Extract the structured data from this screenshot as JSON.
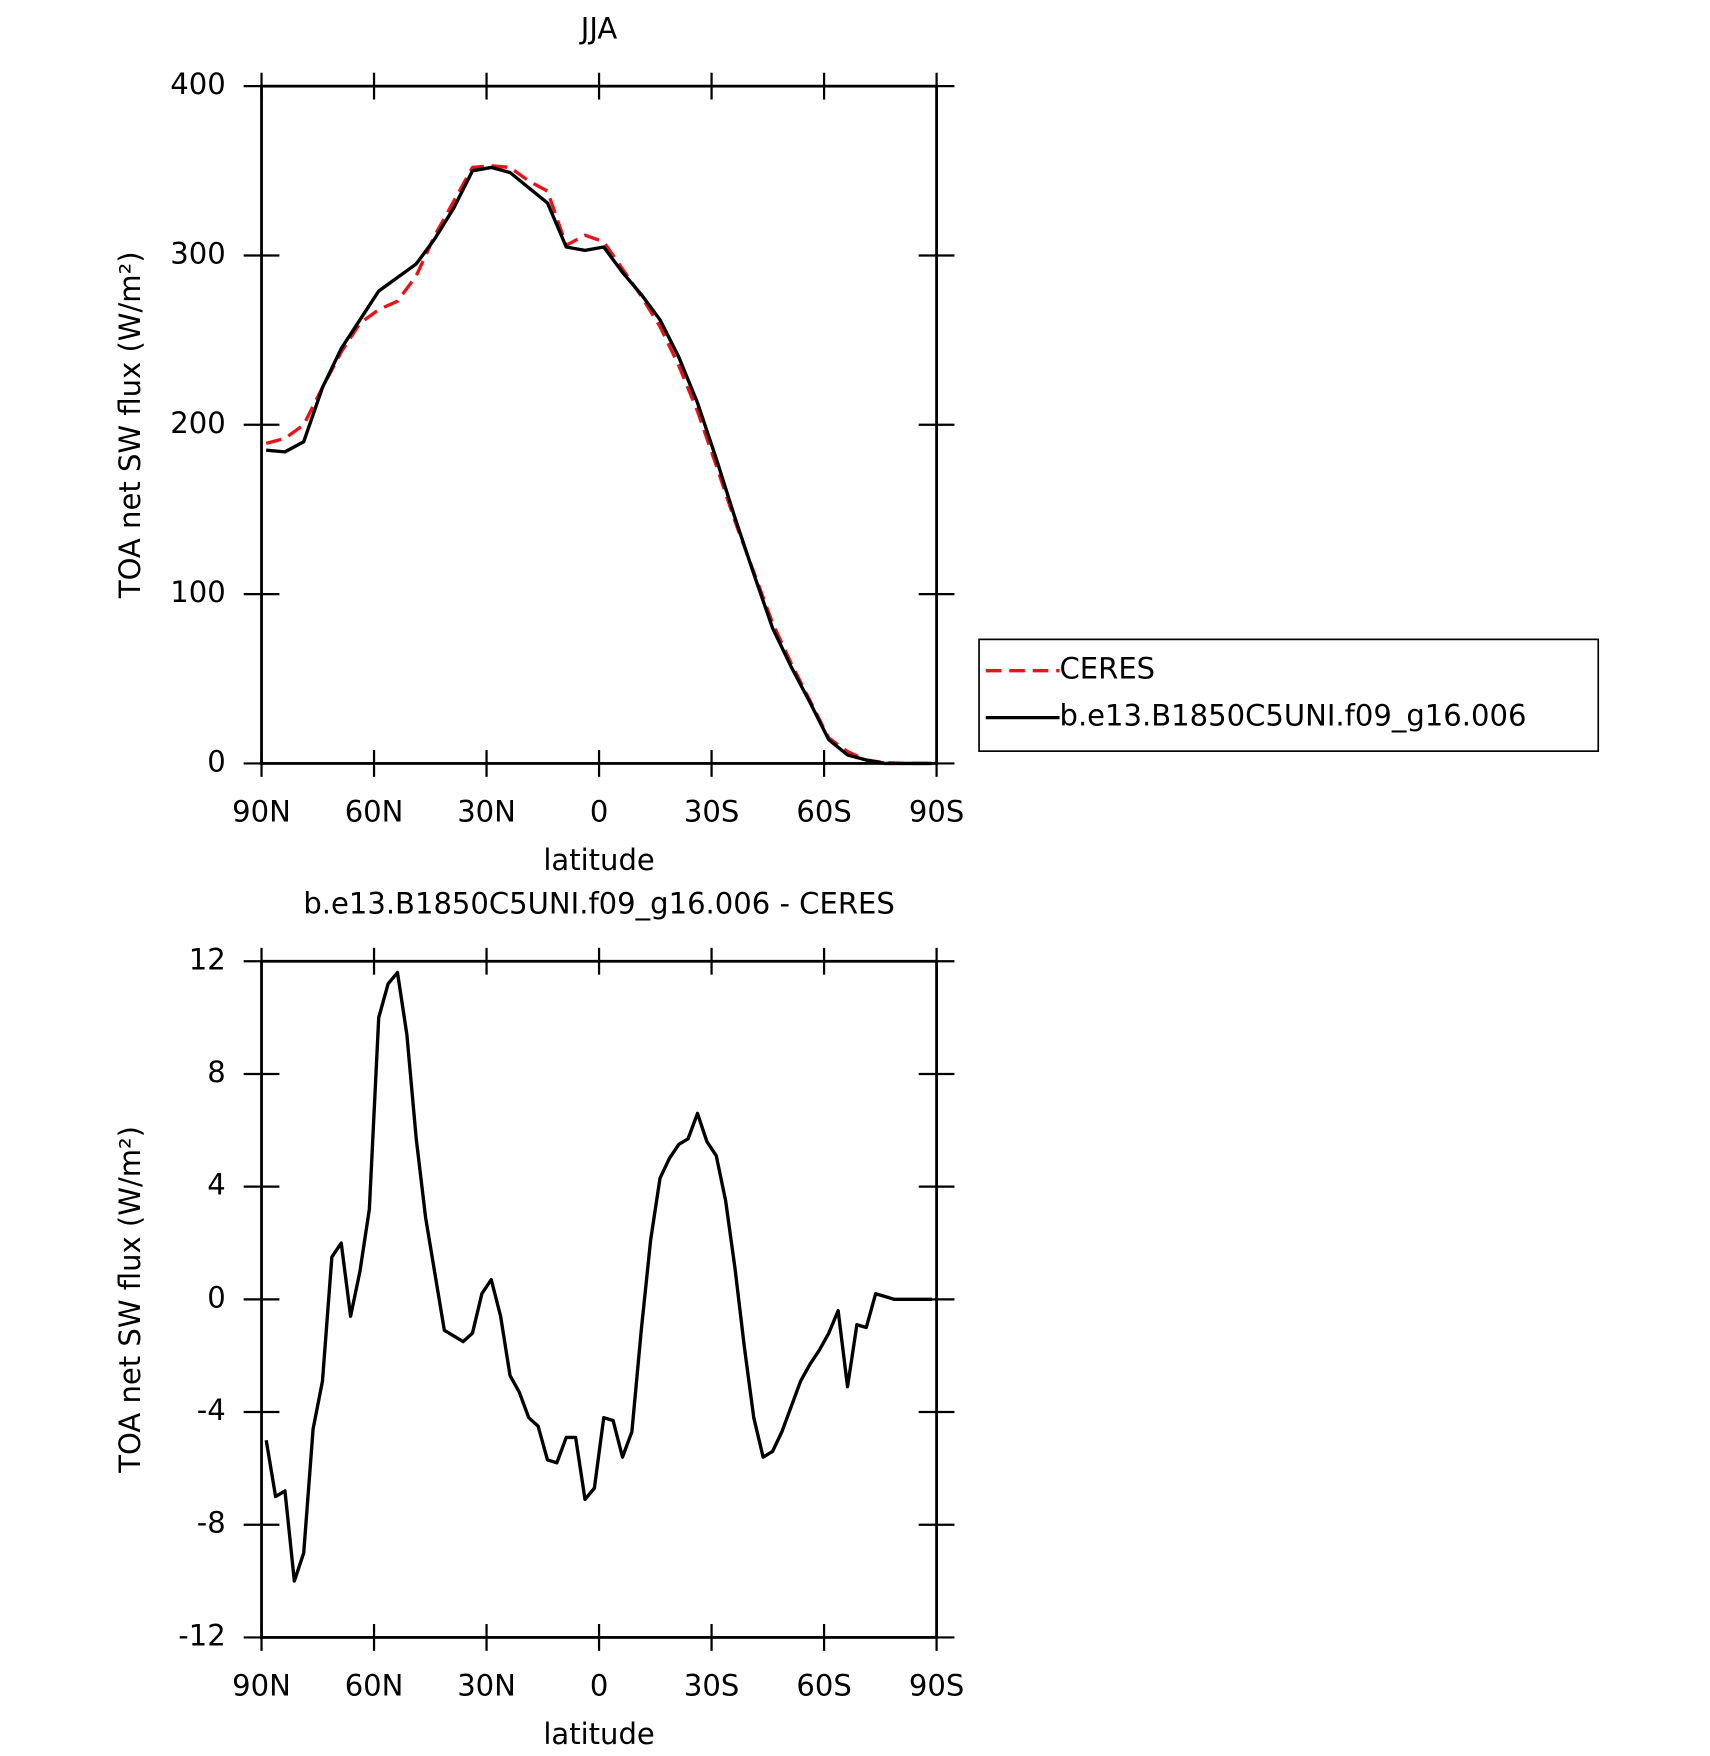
{
  "chart_data": [
    {
      "type": "line",
      "title": "JJA",
      "xlabel": "latitude",
      "ylabel": "TOA net SW flux (W/m²)",
      "x": [
        88.75,
        83.75,
        78.75,
        73.75,
        68.75,
        63.75,
        58.75,
        53.75,
        48.75,
        43.75,
        38.75,
        33.75,
        28.75,
        23.75,
        18.75,
        13.75,
        8.75,
        3.75,
        -1.25,
        -6.25,
        -11.25,
        -16.25,
        -21.25,
        -26.25,
        -31.25,
        -36.25,
        -41.25,
        -46.25,
        -51.25,
        -56.25,
        -61.25,
        -66.25,
        -71.25,
        -76.25,
        -81.25,
        -86.25,
        -88.75
      ],
      "series": [
        {
          "name": "CERES",
          "color": "#e8141a",
          "dash": true,
          "values": [
            189,
            192,
            200,
            222,
            243,
            260,
            268,
            273,
            288,
            312,
            332,
            352,
            353,
            352,
            344,
            338,
            306,
            312,
            308,
            292,
            276,
            258,
            235,
            208,
            176,
            143,
            113,
            83,
            59,
            37,
            15,
            7,
            2,
            0.5,
            0,
            0,
            0
          ]
        },
        {
          "name": "b.e13.B1850C5UNI.f09_g16.006",
          "color": "#000000",
          "dash": false,
          "values": [
            185,
            184,
            190,
            222,
            245,
            262,
            279,
            287,
            295,
            310,
            328,
            350,
            352,
            349,
            340,
            331,
            305,
            303,
            305,
            290,
            277,
            262,
            240,
            213,
            180,
            145,
            112,
            80,
            57,
            36,
            14,
            5,
            2,
            0,
            0,
            0,
            0
          ]
        }
      ],
      "xlim": [
        90,
        -90
      ],
      "xticks": [
        {
          "value": 90,
          "label": "90N"
        },
        {
          "value": 60,
          "label": "60N"
        },
        {
          "value": 30,
          "label": "30N"
        },
        0,
        {
          "value": -30,
          "label": "30S"
        },
        {
          "value": -60,
          "label": "60S"
        },
        {
          "value": -90,
          "label": "90S"
        }
      ],
      "ylim": [
        0,
        400
      ],
      "yticks": [
        0,
        100,
        200,
        300,
        400
      ],
      "legend": "right"
    },
    {
      "type": "line",
      "title": "b.e13.B1850C5UNI.f09_g16.006 - CERES",
      "xlabel": "latitude",
      "ylabel": "TOA net SW flux (W/m²)",
      "x": [
        88.75,
        86.25,
        83.75,
        81.25,
        78.75,
        76.25,
        73.75,
        71.25,
        68.75,
        66.25,
        63.75,
        61.25,
        58.75,
        56.25,
        53.75,
        51.25,
        48.75,
        46.25,
        43.75,
        41.25,
        38.75,
        36.25,
        33.75,
        31.25,
        28.75,
        26.25,
        23.75,
        21.25,
        18.75,
        16.25,
        13.75,
        11.25,
        8.75,
        6.25,
        3.75,
        1.25,
        -1.25,
        -3.75,
        -6.25,
        -8.75,
        -11.25,
        -13.75,
        -16.25,
        -18.75,
        -21.25,
        -23.75,
        -26.25,
        -28.75,
        -31.25,
        -33.75,
        -36.25,
        -38.75,
        -41.25,
        -43.75,
        -46.25,
        -48.75,
        -51.25,
        -53.75,
        -56.25,
        -58.75,
        -61.25,
        -63.75,
        -66.25,
        -68.75,
        -71.25,
        -73.75,
        -76.25,
        -78.75,
        -81.25,
        -83.75,
        -86.25,
        -88.75
      ],
      "series": [
        {
          "name": "b.e13.B1850C5UNI.f09_g16.006 - CERES",
          "color": "#000000",
          "dash": false,
          "values": [
            -5.0,
            -7.0,
            -6.8,
            -10.0,
            -9.0,
            -4.6,
            -2.9,
            1.5,
            2.0,
            -0.6,
            1.0,
            3.2,
            10.0,
            11.2,
            11.6,
            9.4,
            5.7,
            2.9,
            0.9,
            -1.1,
            -1.3,
            -1.5,
            -1.2,
            0.2,
            0.7,
            -0.6,
            -2.7,
            -3.3,
            -4.2,
            -4.5,
            -5.7,
            -5.8,
            -4.9,
            -4.9,
            -7.1,
            -6.7,
            -4.2,
            -4.3,
            -5.6,
            -4.7,
            -1.1,
            2.1,
            4.3,
            5.0,
            5.5,
            5.7,
            6.6,
            5.6,
            5.1,
            3.5,
            1.1,
            -1.7,
            -4.2,
            -5.6,
            -5.4,
            -4.7,
            -3.8,
            -2.9,
            -2.3,
            -1.8,
            -1.2,
            -0.4,
            -3.1,
            -0.9,
            -1.0,
            0.2,
            0.1,
            0.0,
            0,
            0,
            0,
            0
          ]
        }
      ],
      "xlim": [
        90,
        -90
      ],
      "xticks": [
        {
          "value": 90,
          "label": "90N"
        },
        {
          "value": 60,
          "label": "60N"
        },
        {
          "value": 30,
          "label": "30N"
        },
        0,
        {
          "value": -30,
          "label": "30S"
        },
        {
          "value": -60,
          "label": "60S"
        },
        {
          "value": -90,
          "label": "90S"
        }
      ],
      "ylim": [
        -12,
        12
      ],
      "yticks": [
        -12,
        -8,
        -4,
        0,
        4,
        8,
        12
      ]
    }
  ]
}
